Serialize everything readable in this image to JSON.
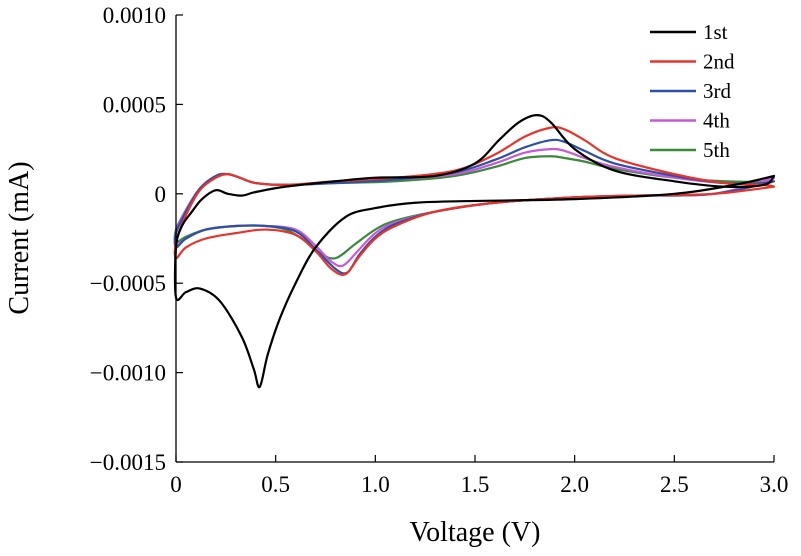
{
  "chart_data": {
    "type": "line",
    "xlabel": "Voltage (V)",
    "ylabel": "Current (mA)",
    "xlim": [
      0,
      3.0
    ],
    "ylim": [
      -0.0015,
      0.001
    ],
    "x_ticks": [
      0,
      0.5,
      1.0,
      1.5,
      2.0,
      2.5,
      3.0
    ],
    "x_tick_labels": [
      "0",
      "0.5",
      "1.0",
      "1.5",
      "2.0",
      "2.5",
      "3.0"
    ],
    "y_ticks": [
      0.001,
      0.0005,
      0,
      -0.0005,
      -0.001,
      -0.0015
    ],
    "y_tick_labels": [
      "0.0010",
      "0.0005",
      "0",
      "−0.0005",
      "−0.0010",
      "−0.0015"
    ],
    "grid": false,
    "legend_position": "top-right",
    "series": [
      {
        "name": "1st",
        "color": "#000000",
        "points": [
          [
            3.0,
            0.0001
          ],
          [
            2.8,
            5e-05
          ],
          [
            2.5,
            0.0
          ],
          [
            2.0,
            -3e-05
          ],
          [
            1.5,
            -4e-05
          ],
          [
            1.2,
            -5e-05
          ],
          [
            1.0,
            -8e-05
          ],
          [
            0.85,
            -0.00013
          ],
          [
            0.7,
            -0.0003
          ],
          [
            0.6,
            -0.0005
          ],
          [
            0.52,
            -0.0007
          ],
          [
            0.46,
            -0.0009
          ],
          [
            0.42,
            -0.00108
          ],
          [
            0.39,
            -0.00098
          ],
          [
            0.33,
            -0.0008
          ],
          [
            0.22,
            -0.0006
          ],
          [
            0.12,
            -0.00053
          ],
          [
            0.05,
            -0.00055
          ],
          [
            0.0,
            -0.00058
          ],
          [
            0.0,
            -0.0003
          ],
          [
            0.03,
            -0.00018
          ],
          [
            0.08,
            -0.0001
          ],
          [
            0.13,
            -3e-05
          ],
          [
            0.2,
            2e-05
          ],
          [
            0.26,
            0.0
          ],
          [
            0.33,
            -1e-05
          ],
          [
            0.4,
            1e-05
          ],
          [
            0.55,
            4e-05
          ],
          [
            0.8,
            7e-05
          ],
          [
            1.0,
            9e-05
          ],
          [
            1.3,
            0.0001
          ],
          [
            1.5,
            0.00017
          ],
          [
            1.62,
            0.0003
          ],
          [
            1.72,
            0.0004
          ],
          [
            1.81,
            0.00044
          ],
          [
            1.88,
            0.0004
          ],
          [
            2.0,
            0.00025
          ],
          [
            2.2,
            0.00013
          ],
          [
            2.5,
            7e-05
          ],
          [
            2.75,
            4e-05
          ],
          [
            2.95,
            5e-05
          ],
          [
            3.0,
            0.0001
          ]
        ]
      },
      {
        "name": "2nd",
        "color": "#e8342a",
        "points": [
          [
            3.0,
            4e-05
          ],
          [
            2.7,
            0.0
          ],
          [
            2.3,
            -1e-05
          ],
          [
            2.0,
            -2e-05
          ],
          [
            1.6,
            -5e-05
          ],
          [
            1.3,
            -0.0001
          ],
          [
            1.1,
            -0.00018
          ],
          [
            1.0,
            -0.00025
          ],
          [
            0.92,
            -0.00035
          ],
          [
            0.85,
            -0.00045
          ],
          [
            0.78,
            -0.00042
          ],
          [
            0.7,
            -0.00032
          ],
          [
            0.6,
            -0.00023
          ],
          [
            0.45,
            -0.0002
          ],
          [
            0.3,
            -0.00022
          ],
          [
            0.15,
            -0.00025
          ],
          [
            0.05,
            -0.0003
          ],
          [
            0.0,
            -0.00036
          ],
          [
            0.0,
            -0.00027
          ],
          [
            0.05,
            -0.00012
          ],
          [
            0.12,
            2e-05
          ],
          [
            0.2,
            9e-05
          ],
          [
            0.26,
            0.00011
          ],
          [
            0.32,
            9e-05
          ],
          [
            0.4,
            6e-05
          ],
          [
            0.55,
            5e-05
          ],
          [
            0.8,
            7e-05
          ],
          [
            1.1,
            9e-05
          ],
          [
            1.4,
            0.00013
          ],
          [
            1.6,
            0.00022
          ],
          [
            1.75,
            0.00032
          ],
          [
            1.88,
            0.00037
          ],
          [
            1.95,
            0.00036
          ],
          [
            2.05,
            0.0003
          ],
          [
            2.2,
            0.0002
          ],
          [
            2.5,
            0.00011
          ],
          [
            2.75,
            6e-05
          ],
          [
            2.95,
            5e-05
          ],
          [
            3.0,
            4e-05
          ]
        ]
      },
      {
        "name": "3rd",
        "color": "#2e4fa8",
        "points": [
          [
            3.0,
            7e-05
          ],
          [
            2.7,
            0.0
          ],
          [
            2.3,
            -1e-05
          ],
          [
            2.0,
            -2e-05
          ],
          [
            1.6,
            -5e-05
          ],
          [
            1.3,
            -0.0001
          ],
          [
            1.1,
            -0.00017
          ],
          [
            1.0,
            -0.00024
          ],
          [
            0.92,
            -0.00034
          ],
          [
            0.86,
            -0.00044
          ],
          [
            0.8,
            -0.00042
          ],
          [
            0.7,
            -0.00031
          ],
          [
            0.6,
            -0.00021
          ],
          [
            0.45,
            -0.00018
          ],
          [
            0.3,
            -0.00018
          ],
          [
            0.15,
            -0.0002
          ],
          [
            0.05,
            -0.00025
          ],
          [
            0.0,
            -0.0003
          ],
          [
            0.0,
            -0.00022
          ],
          [
            0.05,
            -0.0001
          ],
          [
            0.12,
            3e-05
          ],
          [
            0.2,
            0.0001
          ],
          [
            0.26,
            0.00011
          ],
          [
            0.32,
            9e-05
          ],
          [
            0.4,
            6e-05
          ],
          [
            0.55,
            5e-05
          ],
          [
            0.8,
            6e-05
          ],
          [
            1.1,
            8e-05
          ],
          [
            1.4,
            0.00012
          ],
          [
            1.6,
            0.00019
          ],
          [
            1.75,
            0.00026
          ],
          [
            1.88,
            0.0003
          ],
          [
            1.95,
            0.00029
          ],
          [
            2.05,
            0.00024
          ],
          [
            2.2,
            0.00017
          ],
          [
            2.5,
            0.0001
          ],
          [
            2.75,
            6e-05
          ],
          [
            2.95,
            6e-05
          ],
          [
            3.0,
            7e-05
          ]
        ]
      },
      {
        "name": "4th",
        "color": "#c45ad6",
        "points": [
          [
            3.0,
            9e-05
          ],
          [
            2.7,
            0.0
          ],
          [
            2.3,
            -1e-05
          ],
          [
            2.0,
            -2e-05
          ],
          [
            1.6,
            -5e-05
          ],
          [
            1.3,
            -0.0001
          ],
          [
            1.1,
            -0.00016
          ],
          [
            1.0,
            -0.00022
          ],
          [
            0.92,
            -0.00031
          ],
          [
            0.84,
            -0.0004
          ],
          [
            0.78,
            -0.00038
          ],
          [
            0.7,
            -0.00029
          ],
          [
            0.6,
            -0.0002
          ],
          [
            0.45,
            -0.00018
          ],
          [
            0.3,
            -0.00018
          ],
          [
            0.15,
            -0.0002
          ],
          [
            0.05,
            -0.00025
          ],
          [
            0.0,
            -0.00029
          ],
          [
            0.0,
            -0.00021
          ],
          [
            0.05,
            -9e-05
          ],
          [
            0.12,
            3e-05
          ],
          [
            0.2,
            0.0001
          ],
          [
            0.26,
            0.00011
          ],
          [
            0.32,
            9e-05
          ],
          [
            0.4,
            6e-05
          ],
          [
            0.55,
            5e-05
          ],
          [
            0.8,
            6e-05
          ],
          [
            1.1,
            8e-05
          ],
          [
            1.4,
            0.00011
          ],
          [
            1.6,
            0.00017
          ],
          [
            1.75,
            0.00023
          ],
          [
            1.88,
            0.00025
          ],
          [
            1.95,
            0.00024
          ],
          [
            2.05,
            0.0002
          ],
          [
            2.2,
            0.00015
          ],
          [
            2.5,
            9e-05
          ],
          [
            2.75,
            6e-05
          ],
          [
            2.95,
            6e-05
          ],
          [
            3.0,
            9e-05
          ]
        ]
      },
      {
        "name": "5th",
        "color": "#3a8a3a",
        "points": [
          [
            3.0,
            9e-05
          ],
          [
            2.7,
            0.0
          ],
          [
            2.3,
            -1e-05
          ],
          [
            2.0,
            -2e-05
          ],
          [
            1.6,
            -5e-05
          ],
          [
            1.3,
            -0.0001
          ],
          [
            1.1,
            -0.00015
          ],
          [
            1.0,
            -0.0002
          ],
          [
            0.9,
            -0.00028
          ],
          [
            0.8,
            -0.00036
          ],
          [
            0.72,
            -0.00033
          ],
          [
            0.63,
            -0.00025
          ],
          [
            0.55,
            -0.0002
          ],
          [
            0.45,
            -0.00018
          ],
          [
            0.3,
            -0.00018
          ],
          [
            0.15,
            -0.0002
          ],
          [
            0.05,
            -0.00024
          ],
          [
            0.0,
            -0.00027
          ],
          [
            0.0,
            -0.0002
          ],
          [
            0.05,
            -9e-05
          ],
          [
            0.12,
            3e-05
          ],
          [
            0.2,
            0.0001
          ],
          [
            0.26,
            0.00011
          ],
          [
            0.32,
            9e-05
          ],
          [
            0.4,
            6e-05
          ],
          [
            0.55,
            5e-05
          ],
          [
            0.8,
            6e-05
          ],
          [
            1.1,
            7e-05
          ],
          [
            1.4,
            0.0001
          ],
          [
            1.6,
            0.00015
          ],
          [
            1.75,
            0.0002
          ],
          [
            1.88,
            0.00021
          ],
          [
            1.95,
            0.0002
          ],
          [
            2.05,
            0.00018
          ],
          [
            2.2,
            0.00014
          ],
          [
            2.5,
            9e-05
          ],
          [
            2.75,
            7e-05
          ],
          [
            2.95,
            7e-05
          ],
          [
            3.0,
            9e-05
          ]
        ]
      }
    ]
  }
}
